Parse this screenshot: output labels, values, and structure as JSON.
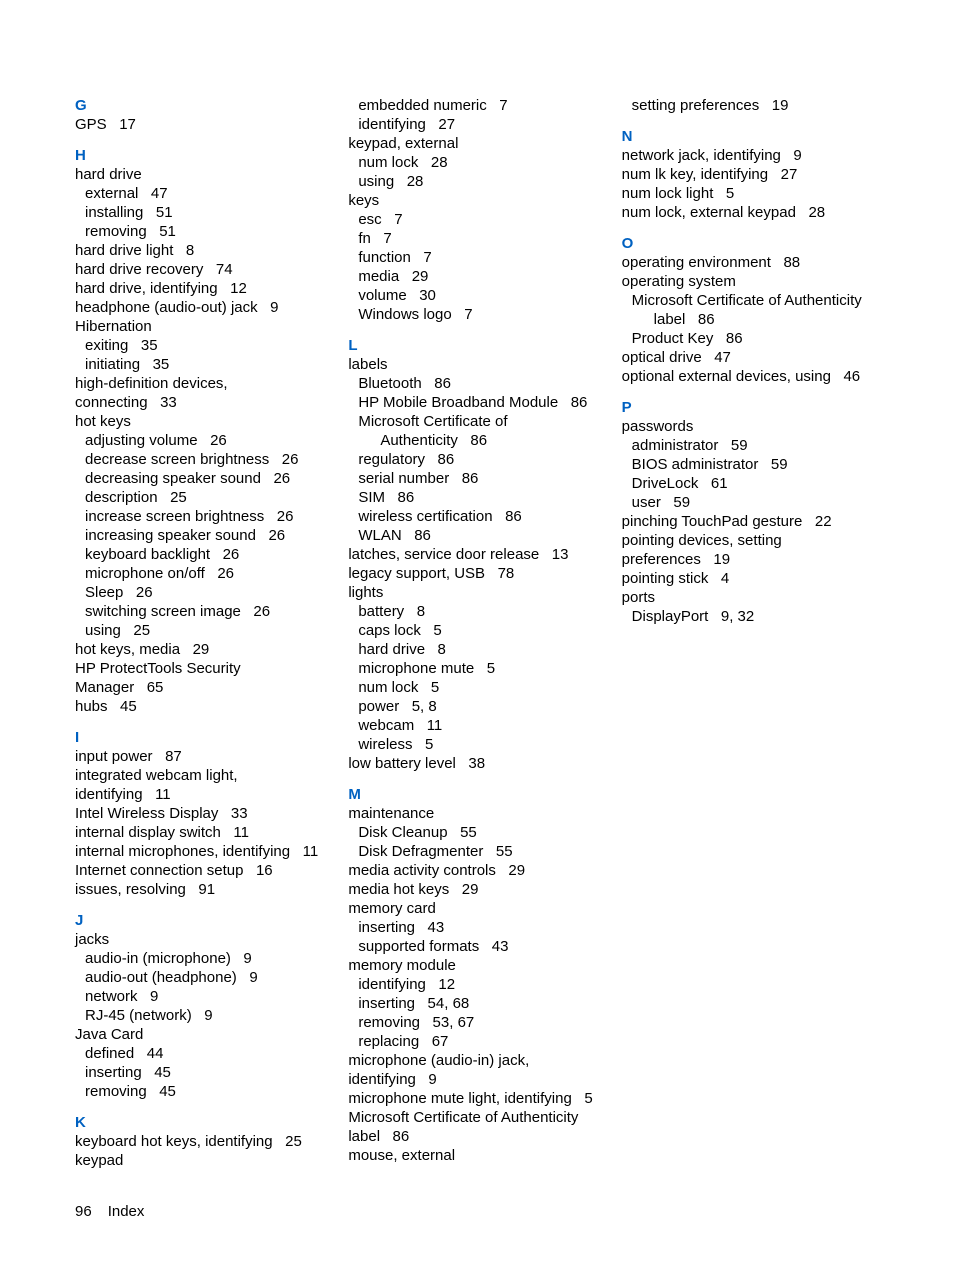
{
  "footer": {
    "page": "96",
    "label": "Index"
  },
  "columns": [
    {
      "letter": "G",
      "entries": [
        {
          "t": "GPS",
          "p": "17",
          "lvl": 0
        }
      ]
    },
    {
      "letter": "H",
      "entries": [
        {
          "t": "hard drive",
          "lvl": 0
        },
        {
          "t": "external",
          "p": "47",
          "lvl": 1
        },
        {
          "t": "installing",
          "p": "51",
          "lvl": 1
        },
        {
          "t": "removing",
          "p": "51",
          "lvl": 1
        },
        {
          "t": "hard drive light",
          "p": "8",
          "lvl": 0
        },
        {
          "t": "hard drive recovery",
          "p": "74",
          "lvl": 0
        },
        {
          "t": "hard drive, identifying",
          "p": "12",
          "lvl": 0
        },
        {
          "t": "headphone (audio-out) jack",
          "p": "9",
          "lvl": 0
        },
        {
          "t": "Hibernation",
          "lvl": 0
        },
        {
          "t": "exiting",
          "p": "35",
          "lvl": 1
        },
        {
          "t": "initiating",
          "p": "35",
          "lvl": 1
        },
        {
          "t": "high-definition devices, connecting",
          "p": "33",
          "lvl": 0,
          "wrap": 1
        },
        {
          "t": "hot keys",
          "lvl": 0
        },
        {
          "t": "adjusting volume",
          "p": "26",
          "lvl": 1
        },
        {
          "t": "decrease screen brightness",
          "p": "26",
          "lvl": 1,
          "wrap": 2
        },
        {
          "t": "decreasing speaker sound",
          "p": "26",
          "lvl": 1
        },
        {
          "t": "description",
          "p": "25",
          "lvl": 1
        },
        {
          "t": "increase screen brightness",
          "p": "26",
          "lvl": 1
        },
        {
          "t": "increasing speaker sound",
          "p": "26",
          "lvl": 1
        },
        {
          "t": "keyboard backlight",
          "p": "26",
          "lvl": 1
        },
        {
          "t": "microphone on/off",
          "p": "26",
          "lvl": 1
        },
        {
          "t": "Sleep",
          "p": "26",
          "lvl": 1
        },
        {
          "t": "switching screen image",
          "p": "26",
          "lvl": 1
        },
        {
          "t": "using",
          "p": "25",
          "lvl": 1
        },
        {
          "t": "hot keys, media",
          "p": "29",
          "lvl": 0
        },
        {
          "t": "HP ProtectTools Security Manager",
          "p": "65",
          "lvl": 0,
          "wrap": 1
        },
        {
          "t": "hubs",
          "p": "45",
          "lvl": 0
        }
      ]
    },
    {
      "letter": "I",
      "entries": [
        {
          "t": "input power",
          "p": "87",
          "lvl": 0
        },
        {
          "t": "integrated webcam light, identifying",
          "p": "11",
          "lvl": 0,
          "wrap": 1
        },
        {
          "t": "Intel Wireless Display",
          "p": "33",
          "lvl": 0
        },
        {
          "t": "internal display switch",
          "p": "11",
          "lvl": 0
        },
        {
          "t": "internal microphones, identifying",
          "p": "11",
          "lvl": 0,
          "wrap": 1
        },
        {
          "t": "Internet connection setup",
          "p": "16",
          "lvl": 0
        },
        {
          "t": "issues, resolving",
          "p": "91",
          "lvl": 0
        }
      ]
    },
    {
      "letter": "J",
      "entries": [
        {
          "t": "jacks",
          "lvl": 0
        },
        {
          "t": "audio-in (microphone)",
          "p": "9",
          "lvl": 1
        },
        {
          "t": "audio-out (headphone)",
          "p": "9",
          "lvl": 1
        },
        {
          "t": "network",
          "p": "9",
          "lvl": 1
        },
        {
          "t": "RJ-45 (network)",
          "p": "9",
          "lvl": 1
        },
        {
          "t": "Java Card",
          "lvl": 0
        },
        {
          "t": "defined",
          "p": "44",
          "lvl": 1
        },
        {
          "t": "inserting",
          "p": "45",
          "lvl": 1
        },
        {
          "t": "removing",
          "p": "45",
          "lvl": 1
        }
      ]
    },
    {
      "letter": "K",
      "entries": [
        {
          "t": "keyboard hot keys, identifying",
          "p": "25",
          "lvl": 0
        },
        {
          "t": "keypad",
          "lvl": 0
        },
        {
          "t": "embedded numeric",
          "p": "7",
          "lvl": 1
        },
        {
          "t": "identifying",
          "p": "27",
          "lvl": 1
        },
        {
          "t": "keypad, external",
          "lvl": 0
        },
        {
          "t": "num lock",
          "p": "28",
          "lvl": 1
        },
        {
          "t": "using",
          "p": "28",
          "lvl": 1
        },
        {
          "t": "keys",
          "lvl": 0
        },
        {
          "t": "esc",
          "p": "7",
          "lvl": 1
        },
        {
          "t": "fn",
          "p": "7",
          "lvl": 1
        },
        {
          "t": "function",
          "p": "7",
          "lvl": 1
        },
        {
          "t": "media",
          "p": "29",
          "lvl": 1
        },
        {
          "t": "volume",
          "p": "30",
          "lvl": 1
        },
        {
          "t": "Windows logo",
          "p": "7",
          "lvl": 1
        }
      ]
    },
    {
      "letter": "L",
      "entries": [
        {
          "t": "labels",
          "lvl": 0
        },
        {
          "t": "Bluetooth",
          "p": "86",
          "lvl": 1
        },
        {
          "t": "HP Mobile Broadband Module",
          "p": "86",
          "lvl": 1,
          "wrap": 1
        },
        {
          "t": "Microsoft Certificate of Authenticity",
          "p": "86",
          "lvl": 1,
          "wrap": 1
        },
        {
          "t": "regulatory",
          "p": "86",
          "lvl": 1
        },
        {
          "t": "serial number",
          "p": "86",
          "lvl": 1
        },
        {
          "t": "SIM",
          "p": "86",
          "lvl": 1
        },
        {
          "t": "wireless certification",
          "p": "86",
          "lvl": 1
        },
        {
          "t": "WLAN",
          "p": "86",
          "lvl": 1
        },
        {
          "t": "latches, service door release",
          "p": "13",
          "lvl": 0
        },
        {
          "t": "legacy support, USB",
          "p": "78",
          "lvl": 0
        },
        {
          "t": "lights",
          "lvl": 0
        },
        {
          "t": "battery",
          "p": "8",
          "lvl": 1
        },
        {
          "t": "caps lock",
          "p": "5",
          "lvl": 1
        },
        {
          "t": "hard drive",
          "p": "8",
          "lvl": 1
        },
        {
          "t": "microphone mute",
          "p": "5",
          "lvl": 1
        },
        {
          "t": "num lock",
          "p": "5",
          "lvl": 1
        },
        {
          "t": "power",
          "p": "5, 8",
          "lvl": 1
        },
        {
          "t": "webcam",
          "p": "11",
          "lvl": 1
        },
        {
          "t": "wireless",
          "p": "5",
          "lvl": 1
        },
        {
          "t": "low battery level",
          "p": "38",
          "lvl": 0
        }
      ]
    },
    {
      "letter": "M",
      "entries": [
        {
          "t": "maintenance",
          "lvl": 0
        },
        {
          "t": "Disk Cleanup",
          "p": "55",
          "lvl": 1
        },
        {
          "t": "Disk Defragmenter",
          "p": "55",
          "lvl": 1
        },
        {
          "t": "media activity controls",
          "p": "29",
          "lvl": 0
        },
        {
          "t": "media hot keys",
          "p": "29",
          "lvl": 0
        },
        {
          "t": "memory card",
          "lvl": 0
        },
        {
          "t": "inserting",
          "p": "43",
          "lvl": 1
        },
        {
          "t": "supported formats",
          "p": "43",
          "lvl": 1
        },
        {
          "t": "memory module",
          "lvl": 0
        },
        {
          "t": "identifying",
          "p": "12",
          "lvl": 1
        },
        {
          "t": "inserting",
          "p": "54, 68",
          "lvl": 1
        },
        {
          "t": "removing",
          "p": "53, 67",
          "lvl": 1
        },
        {
          "t": "replacing",
          "p": "67",
          "lvl": 1
        },
        {
          "t": "microphone (audio-in) jack, identifying",
          "p": "9",
          "lvl": 0,
          "wrap": 1
        },
        {
          "t": "microphone mute light, identifying",
          "p": "5",
          "lvl": 0,
          "wrap": 1
        },
        {
          "t": "Microsoft Certificate of Authenticity label",
          "p": "86",
          "lvl": 0,
          "wrap": 1
        },
        {
          "t": "mouse, external",
          "lvl": 0
        },
        {
          "t": "setting preferences",
          "p": "19",
          "lvl": 1
        }
      ]
    },
    {
      "letter": "N",
      "entries": [
        {
          "t": "network jack, identifying",
          "p": "9",
          "lvl": 0
        },
        {
          "t": "num lk key, identifying",
          "p": "27",
          "lvl": 0
        },
        {
          "t": "num lock light",
          "p": "5",
          "lvl": 0
        },
        {
          "t": "num lock, external keypad",
          "p": "28",
          "lvl": 0
        }
      ]
    },
    {
      "letter": "O",
      "entries": [
        {
          "t": "operating environment",
          "p": "88",
          "lvl": 0
        },
        {
          "t": "operating system",
          "lvl": 0
        },
        {
          "t": "Microsoft Certificate of Authenticity label",
          "p": "86",
          "lvl": 1,
          "wrap": 1
        },
        {
          "t": "Product Key",
          "p": "86",
          "lvl": 1
        },
        {
          "t": "optical drive",
          "p": "47",
          "lvl": 0
        },
        {
          "t": "optional external devices, using",
          "p": "46",
          "lvl": 0,
          "wrap": 1
        }
      ]
    },
    {
      "letter": "P",
      "entries": [
        {
          "t": "passwords",
          "lvl": 0
        },
        {
          "t": "administrator",
          "p": "59",
          "lvl": 1
        },
        {
          "t": "BIOS administrator",
          "p": "59",
          "lvl": 1
        },
        {
          "t": "DriveLock",
          "p": "61",
          "lvl": 1
        },
        {
          "t": "user",
          "p": "59",
          "lvl": 1
        },
        {
          "t": "pinching TouchPad gesture",
          "p": "22",
          "lvl": 0
        },
        {
          "t": "pointing devices, setting preferences",
          "p": "19",
          "lvl": 0,
          "wrap": 1
        },
        {
          "t": "pointing stick",
          "p": "4",
          "lvl": 0
        },
        {
          "t": "ports",
          "lvl": 0
        },
        {
          "t": "DisplayPort",
          "p": "9, 32",
          "lvl": 1
        }
      ]
    }
  ]
}
